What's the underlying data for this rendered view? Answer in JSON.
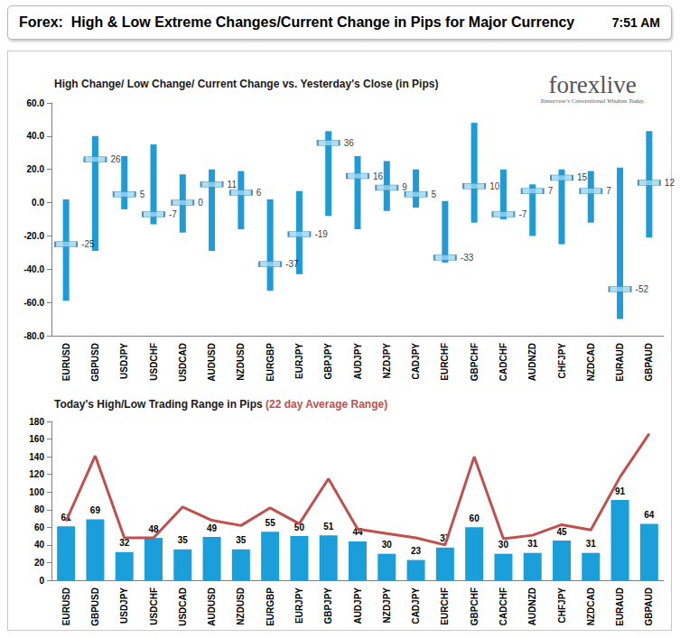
{
  "header": {
    "title": "Forex:  High & Low Extreme Changes/Current Change in Pips for Major Currency",
    "time": "7:51 AM"
  },
  "logo": {
    "name": "forexlive",
    "tagline": "Tomorrow's Conventional Wisdom Today."
  },
  "chart_data": [
    {
      "type": "range",
      "title": "High Change/ Low Change/ Current Change vs. Yesterday's Close (in Pips)",
      "categories": [
        "EURUSD",
        "GBPUSD",
        "USDJPY",
        "USDCHF",
        "USDCAD",
        "AUDUSD",
        "NZDUSD",
        "EURGBP",
        "EURJPY",
        "GBPJPY",
        "AUDJPY",
        "NZDJPY",
        "CADJPY",
        "EURCHF",
        "GBPCHF",
        "CADCHF",
        "AUDNZD",
        "CHFJPY",
        "NZDCAD",
        "EURAUD",
        "GBPAUD"
      ],
      "high": [
        2,
        40,
        28,
        35,
        17,
        20,
        19,
        2,
        7,
        43,
        28,
        25,
        20,
        1,
        48,
        20,
        11,
        20,
        19,
        21,
        43
      ],
      "low": [
        -59,
        -29,
        -4,
        -13,
        -18,
        -29,
        -16,
        -53,
        -43,
        -8,
        -16,
        -5,
        -3,
        -36,
        -12,
        -10,
        -20,
        -25,
        -12,
        -70,
        -21
      ],
      "values": [
        -25,
        26,
        5,
        -7,
        0,
        11,
        6,
        -37,
        -19,
        36,
        16,
        9,
        5,
        -33,
        10,
        -7,
        7,
        15,
        7,
        -52,
        12
      ],
      "data_labels": true,
      "color": "#1f9bd7",
      "ylim": [
        -80,
        60
      ],
      "yticks": [
        {
          "value": -80,
          "label": "-80.0"
        },
        {
          "value": -60,
          "label": "-60.0"
        },
        {
          "value": -40,
          "label": "-40.0"
        },
        {
          "value": -20,
          "label": "-20.0"
        },
        {
          "value": 0,
          "label": "0.0"
        },
        {
          "value": 20,
          "label": "20.0"
        },
        {
          "value": 40,
          "label": "40.0"
        },
        {
          "value": 60,
          "label": "60.0"
        }
      ],
      "grid": false
    },
    {
      "type": "bar",
      "title": "Today's High/Low Trading Range in Pips",
      "categories": [
        "EURUSD",
        "GBPUSD",
        "USDJPY",
        "USDCHF",
        "USDCAD",
        "AUDUSD",
        "NZDUSD",
        "EURGBP",
        "EURJPY",
        "GBPJPY",
        "AUDJPY",
        "NZDJPY",
        "CADJPY",
        "EURCHF",
        "GBPCHF",
        "CADCHF",
        "AUDNZD",
        "CHFJPY",
        "NZDCAD",
        "EURAUD",
        "GBPAUD"
      ],
      "series": [
        {
          "type": "bar",
          "color": "#1a9fdb",
          "data_labels": true,
          "values": [
            61,
            69,
            32,
            48,
            35,
            49,
            35,
            55,
            50,
            51,
            44,
            30,
            23,
            37,
            60,
            30,
            31,
            45,
            31,
            91,
            64
          ]
        },
        {
          "type": "line",
          "name": "(22 day Average Range)",
          "color": "#c0504d",
          "values": [
            67,
            141,
            48,
            48,
            83,
            68,
            62,
            82,
            64,
            115,
            58,
            53,
            48,
            40,
            140,
            47,
            51,
            63,
            57,
            117,
            166
          ]
        }
      ],
      "ylim": [
        0,
        180
      ],
      "yticks": [
        0,
        20,
        40,
        60,
        80,
        100,
        120,
        140,
        160,
        180
      ],
      "grid": false
    }
  ]
}
